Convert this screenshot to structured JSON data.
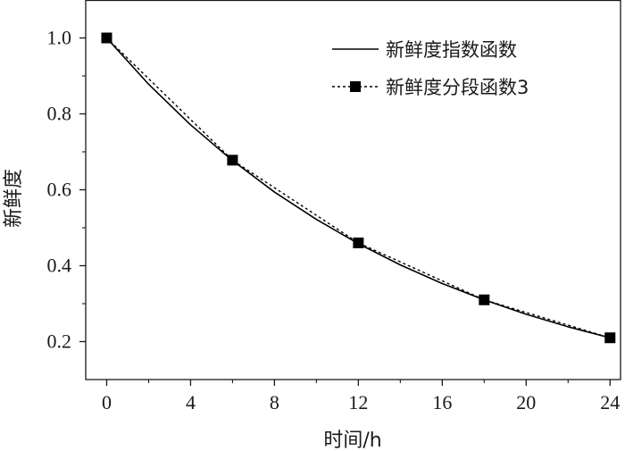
{
  "chart_data": {
    "type": "line",
    "xlabel": "时间/h",
    "ylabel": "新鲜度",
    "xlim": [
      -1,
      24.5
    ],
    "ylim": [
      0.1,
      1.1
    ],
    "xticks": [
      0,
      4,
      8,
      12,
      16,
      20,
      24
    ],
    "yticks": [
      0.2,
      0.4,
      0.6,
      0.8,
      1.0
    ],
    "ytick_labels": [
      "0.2",
      "0.4",
      "0.6",
      "0.8",
      "1.0"
    ],
    "legend_position": "top-right",
    "series": [
      {
        "name": "新鲜度指数函数",
        "style": "solid",
        "color": "#000000",
        "x": [
          0,
          2,
          4,
          6,
          8,
          10,
          12,
          14,
          16,
          18,
          20,
          22,
          24
        ],
        "values": [
          1.0,
          0.878,
          0.771,
          0.677,
          0.594,
          0.522,
          0.458,
          0.402,
          0.353,
          0.31,
          0.272,
          0.239,
          0.21
        ]
      },
      {
        "name": "新鲜度分段函数3",
        "style": "dotted",
        "marker": "square",
        "color": "#000000",
        "x": [
          0,
          6,
          12,
          18,
          24
        ],
        "values": [
          1.0,
          0.678,
          0.46,
          0.31,
          0.21
        ]
      }
    ]
  }
}
